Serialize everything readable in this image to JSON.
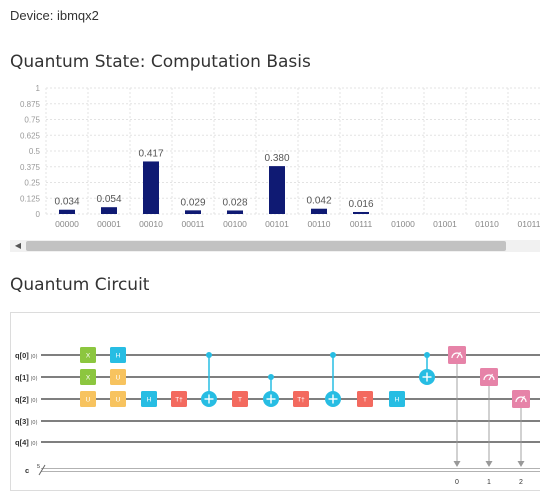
{
  "device_label": "Device: ibmqx2",
  "quantum_state_title": "Quantum State: Computation Basis",
  "quantum_circuit_title": "Quantum Circuit",
  "chart_data": {
    "type": "bar",
    "categories": [
      "00000",
      "00001",
      "00010",
      "00011",
      "00100",
      "00101",
      "00110",
      "00111",
      "01000",
      "01001",
      "01010",
      "01011"
    ],
    "values": [
      0.034,
      0.054,
      0.417,
      0.029,
      0.028,
      0.38,
      0.042,
      0.016,
      null,
      null,
      null,
      null
    ],
    "value_labels": [
      "0.034",
      "0.054",
      "0.417",
      "0.029",
      "0.028",
      "0.380",
      "0.042",
      "0.016",
      "",
      "",
      "",
      ""
    ],
    "y_ticks": [
      "1",
      "0.875",
      "0.75",
      "0.625",
      "0.5",
      "0.375",
      "0.25",
      "0.125",
      "0"
    ],
    "ylim": [
      0,
      1
    ],
    "bar_color": "#0f1a73",
    "grid": true
  },
  "circuit": {
    "qubits": [
      "q[0]",
      "q[1]",
      "q[2]",
      "q[3]",
      "q[4]"
    ],
    "classical": "c",
    "classical_count": "5",
    "register_glyph": "|0⟩",
    "measure_targets": [
      "0",
      "1",
      "2"
    ],
    "gate_labels": {
      "H": "H",
      "X": "X",
      "T": "T",
      "Tdg": "T†",
      "U": "U",
      "S": "S"
    },
    "colors": {
      "green": "#8cc63f",
      "yellow": "#f7c35f",
      "blue": "#27bde3",
      "red": "#f36a5f",
      "pink": "#e683a8",
      "wire": "#333333",
      "control": "#27bde3"
    }
  }
}
